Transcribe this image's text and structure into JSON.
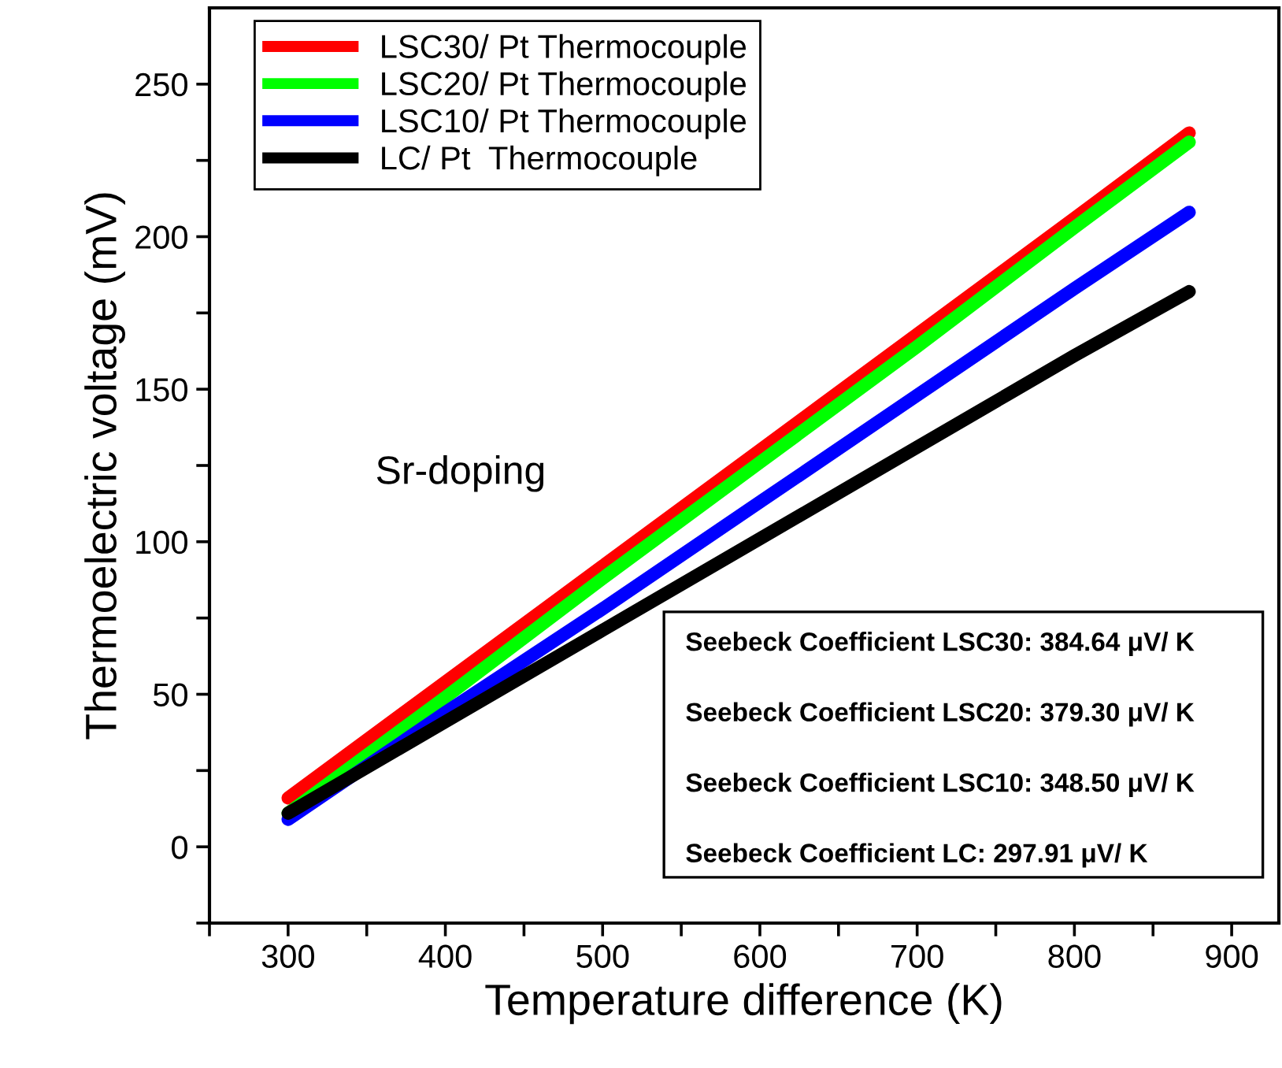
{
  "chart_data": {
    "type": "line",
    "xlabel": "Temperature difference (K)",
    "ylabel": "Thermoelectric voltage (mV)",
    "xlim": [
      250,
      930
    ],
    "ylim": [
      -25,
      275
    ],
    "xticks": [
      {
        "value": 250,
        "label": null
      },
      300,
      {
        "value": 350,
        "label": null
      },
      400,
      {
        "value": 450,
        "label": null
      },
      500,
      {
        "value": 550,
        "label": null
      },
      600,
      {
        "value": 650,
        "label": null
      },
      700,
      {
        "value": 750,
        "label": null
      },
      800,
      {
        "value": 850,
        "label": null
      },
      900
    ],
    "yticks": [
      {
        "value": -25,
        "label": null
      },
      0,
      {
        "value": 25,
        "label": null
      },
      50,
      {
        "value": 75,
        "label": null
      },
      100,
      {
        "value": 125,
        "label": null
      },
      150,
      {
        "value": 175,
        "label": null
      },
      200,
      {
        "value": 225,
        "label": null
      },
      250
    ],
    "grid": false,
    "legend": "top left",
    "line_style": "solid",
    "marker": "none",
    "x": [
      300,
      400,
      500,
      600,
      700,
      800,
      873
    ],
    "series": [
      {
        "name": "LSC30/ Pt Thermocouple",
        "color": "#ff0000",
        "values": [
          16,
          54,
          92,
          130,
          168,
          206,
          234
        ]
      },
      {
        "name": "LSC20/ Pt Thermocouple",
        "color": "#00ff00",
        "values": [
          11,
          49,
          88,
          126,
          164,
          203,
          231
        ]
      },
      {
        "name": "LSC10/ Pt Thermocouple",
        "color": "#0000ff",
        "values": [
          9,
          44,
          78,
          113,
          148,
          183,
          208
        ]
      },
      {
        "name": "LC/ Pt  Thermocouple",
        "color": "#000000",
        "values": [
          11,
          41,
          71,
          101,
          131,
          161,
          182
        ]
      }
    ],
    "annotations": [
      "Sr-doping",
      "Seebeck Coefficient LSC30: 384.64 μV/ K",
      "Seebeck Coefficient LSC20: 379.30 μV/ K",
      "Seebeck Coefficient LSC10: 348.50 μV/ K",
      "Seebeck Coefficient LC: 297.91 μV/ K"
    ]
  }
}
